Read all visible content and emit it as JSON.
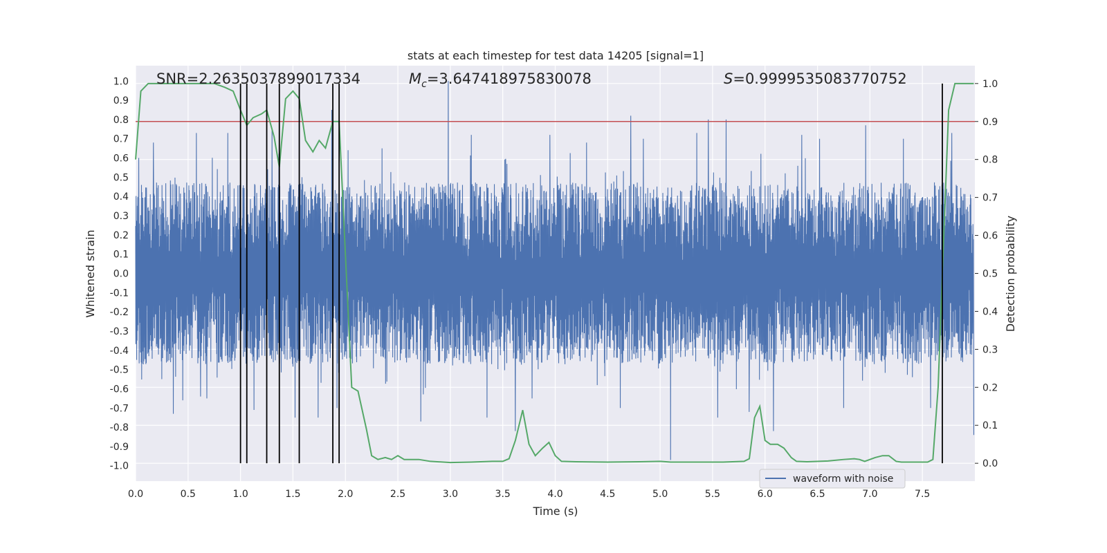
{
  "chart_data": {
    "type": "line",
    "title": "stats at each timestep for test data 14205 [signal=1]",
    "xlabel": "Time (s)",
    "ylabel": "Whitened strain",
    "y2label": "Detection probability",
    "xlim": [
      0.0,
      8.0
    ],
    "ylim": [
      -1.08,
      1.08
    ],
    "y2lim": [
      -0.047,
      1.047
    ],
    "x_ticks": [
      "0.0",
      "0.5",
      "1.0",
      "1.5",
      "2.0",
      "2.5",
      "3.0",
      "3.5",
      "4.0",
      "4.5",
      "5.0",
      "5.5",
      "6.0",
      "6.5",
      "7.0",
      "7.5"
    ],
    "y_ticks": [
      "1.0",
      "0.9",
      "0.8",
      "0.7",
      "0.6",
      "0.5",
      "0.4",
      "0.3",
      "0.2",
      "0.1",
      "0.0",
      "-0.1",
      "-0.2",
      "-0.3",
      "-0.4",
      "-0.5",
      "-0.6",
      "-0.7",
      "-0.8",
      "-0.9",
      "-1.0"
    ],
    "y2_ticks": [
      "1.0",
      "0.9",
      "0.8",
      "0.7",
      "0.6",
      "0.5",
      "0.4",
      "0.3",
      "0.2",
      "0.1",
      "0.0"
    ],
    "grid": true,
    "legend_position": "lower-right",
    "annotations": {
      "snr": "SNR=2.2635037899017334",
      "mc_symbol": "M",
      "mc_sub": "c",
      "mc_value": "=3.647418975830078",
      "s_symbol": "S",
      "s_value": "=0.9999535083770752"
    },
    "threshold": 0.9,
    "vertical_lines": [
      1.0,
      1.06,
      1.25,
      1.37,
      1.56,
      1.88,
      1.94,
      7.69
    ],
    "series": [
      {
        "name": "waveform with noise",
        "axis": "left",
        "color": "#4c72b0",
        "envelope_note": "dense oscillating strain; typical range -0.45 to 0.45 with spikes",
        "spikes": [
          {
            "x": 0.03,
            "v": 0.6
          },
          {
            "x": 0.17,
            "v": 0.68
          },
          {
            "x": 0.25,
            "v": -0.55
          },
          {
            "x": 0.36,
            "v": -0.73
          },
          {
            "x": 0.45,
            "v": -0.66
          },
          {
            "x": 0.58,
            "v": 0.73
          },
          {
            "x": 0.62,
            "v": -0.64
          },
          {
            "x": 0.68,
            "v": -0.65
          },
          {
            "x": 0.88,
            "v": 0.73
          },
          {
            "x": 1.13,
            "v": -0.71
          },
          {
            "x": 1.3,
            "v": 0.75
          },
          {
            "x": 1.52,
            "v": -0.75
          },
          {
            "x": 1.74,
            "v": -0.75
          },
          {
            "x": 1.87,
            "v": 0.85
          },
          {
            "x": 1.92,
            "v": -0.7
          },
          {
            "x": 2.35,
            "v": 0.65
          },
          {
            "x": 2.72,
            "v": -0.77
          },
          {
            "x": 2.98,
            "v": 1.0
          },
          {
            "x": 3.2,
            "v": 0.72
          },
          {
            "x": 3.35,
            "v": -0.75
          },
          {
            "x": 3.62,
            "v": -0.82
          },
          {
            "x": 3.78,
            "v": -0.65
          },
          {
            "x": 3.95,
            "v": 0.72
          },
          {
            "x": 4.3,
            "v": 0.68
          },
          {
            "x": 4.62,
            "v": -0.7
          },
          {
            "x": 4.72,
            "v": 0.82
          },
          {
            "x": 4.84,
            "v": 0.7
          },
          {
            "x": 5.1,
            "v": -0.97
          },
          {
            "x": 5.35,
            "v": 0.73
          },
          {
            "x": 5.46,
            "v": 0.8
          },
          {
            "x": 5.55,
            "v": -0.75
          },
          {
            "x": 5.63,
            "v": 0.8
          },
          {
            "x": 5.85,
            "v": -0.72
          },
          {
            "x": 6.08,
            "v": -0.82
          },
          {
            "x": 6.35,
            "v": 0.72
          },
          {
            "x": 6.52,
            "v": 0.7
          },
          {
            "x": 6.75,
            "v": -0.7
          },
          {
            "x": 6.96,
            "v": 0.77
          },
          {
            "x": 7.32,
            "v": 0.7
          },
          {
            "x": 7.58,
            "v": -0.7
          },
          {
            "x": 7.78,
            "v": 0.73
          },
          {
            "x": 7.99,
            "v": -0.84
          }
        ]
      },
      {
        "name": "",
        "axis": "right",
        "color": "#55a868",
        "x": [
          0.0,
          0.05,
          0.12,
          0.2,
          0.4,
          0.6,
          0.75,
          0.85,
          0.93,
          1.0,
          1.06,
          1.12,
          1.2,
          1.25,
          1.32,
          1.37,
          1.43,
          1.5,
          1.56,
          1.62,
          1.69,
          1.75,
          1.81,
          1.88,
          1.94,
          2.0,
          2.06,
          2.12,
          2.2,
          2.25,
          2.31,
          2.38,
          2.44,
          2.5,
          2.56,
          2.62,
          2.7,
          2.81,
          3.0,
          3.2,
          3.4,
          3.5,
          3.56,
          3.62,
          3.69,
          3.75,
          3.81,
          3.88,
          3.94,
          4.0,
          4.06,
          4.2,
          4.5,
          4.8,
          5.0,
          5.1,
          5.3,
          5.6,
          5.8,
          5.85,
          5.9,
          5.95,
          6.0,
          6.05,
          6.12,
          6.18,
          6.25,
          6.3,
          6.4,
          6.6,
          6.75,
          6.85,
          6.9,
          6.95,
          7.0,
          7.05,
          7.12,
          7.18,
          7.25,
          7.3,
          7.4,
          7.5,
          7.55,
          7.6,
          7.65,
          7.69,
          7.75,
          7.81,
          7.88,
          7.94,
          7.99
        ],
        "values": [
          0.8,
          0.98,
          1.0,
          1.0,
          1.0,
          1.0,
          1.0,
          0.99,
          0.98,
          0.93,
          0.89,
          0.91,
          0.92,
          0.93,
          0.86,
          0.78,
          0.96,
          0.98,
          0.96,
          0.85,
          0.82,
          0.85,
          0.83,
          0.9,
          0.9,
          0.55,
          0.2,
          0.19,
          0.09,
          0.02,
          0.01,
          0.015,
          0.01,
          0.02,
          0.01,
          0.01,
          0.01,
          0.005,
          0.002,
          0.003,
          0.005,
          0.005,
          0.012,
          0.06,
          0.14,
          0.05,
          0.02,
          0.04,
          0.055,
          0.02,
          0.005,
          0.004,
          0.003,
          0.004,
          0.005,
          0.003,
          0.003,
          0.003,
          0.005,
          0.012,
          0.12,
          0.15,
          0.06,
          0.05,
          0.05,
          0.04,
          0.015,
          0.005,
          0.004,
          0.006,
          0.01,
          0.012,
          0.01,
          0.005,
          0.01,
          0.015,
          0.02,
          0.02,
          0.005,
          0.003,
          0.003,
          0.003,
          0.003,
          0.01,
          0.2,
          0.5,
          0.93,
          1.0,
          1.0,
          1.0,
          1.0
        ]
      }
    ]
  }
}
